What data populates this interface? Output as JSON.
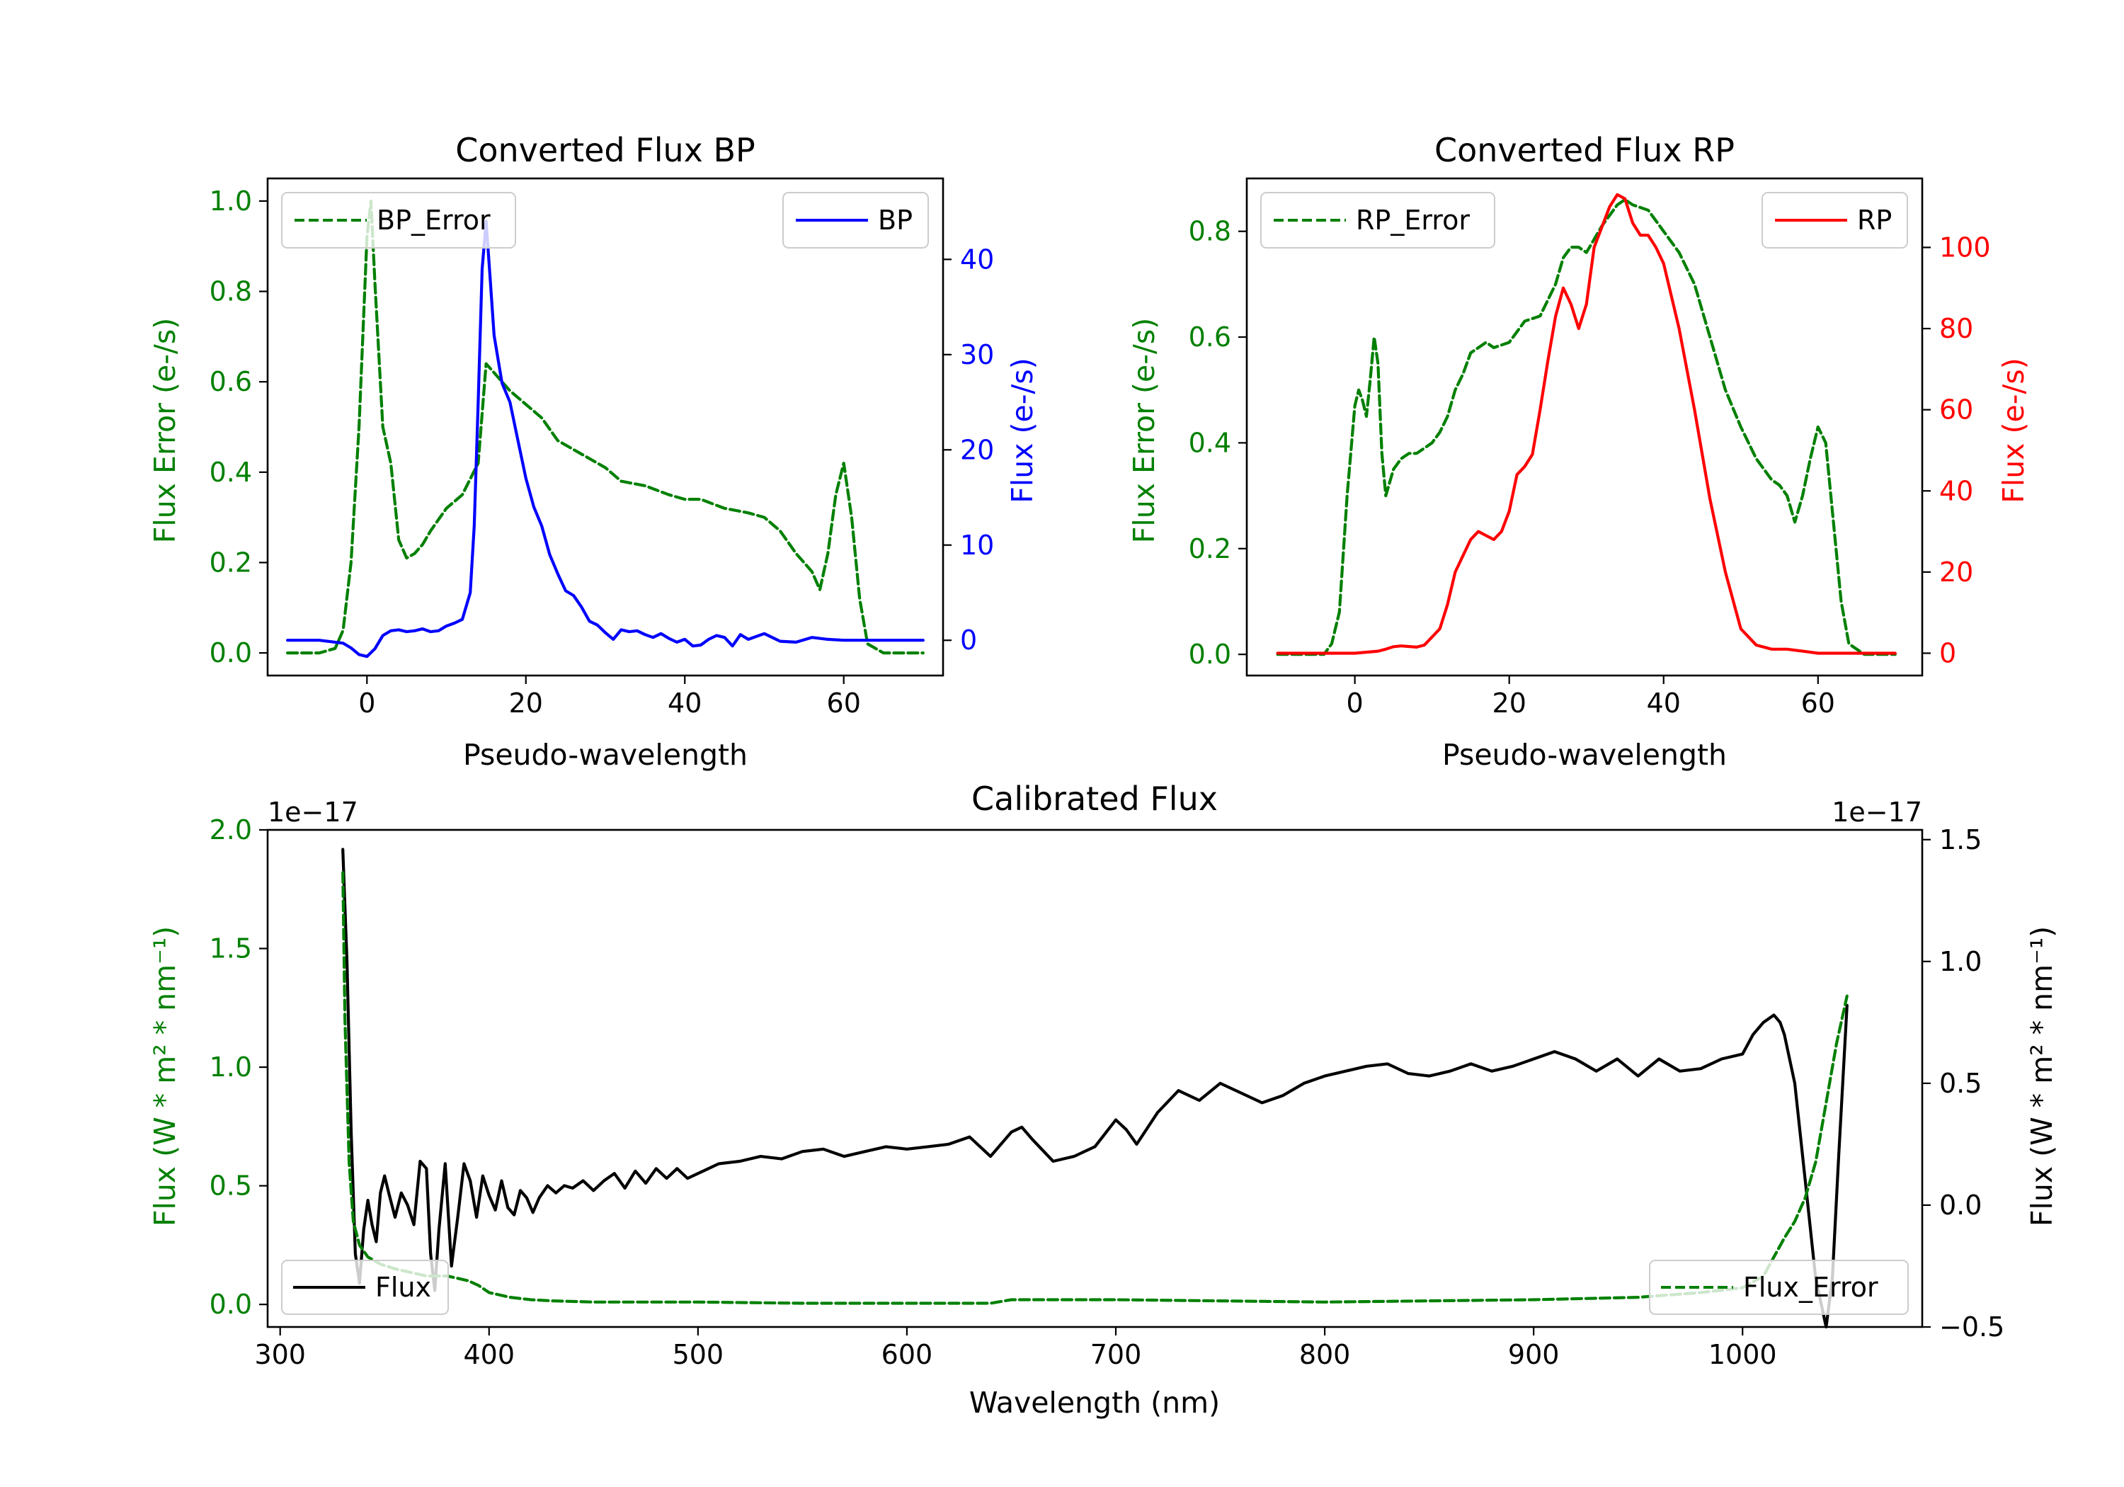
{
  "chart_data": [
    {
      "id": "bp",
      "type": "line",
      "title": "Converted Flux BP",
      "xlabel": "Pseudo-wavelength",
      "ylabel_left": "Flux Error (e-/s)",
      "ylabel_right": "Flux (e-/s)",
      "xlim": [
        -12.5,
        72.5
      ],
      "ylim_left": [
        -0.05,
        1.05
      ],
      "ylim_right": [
        -3.7,
        48.5
      ],
      "xticks": [
        0,
        20,
        40,
        60
      ],
      "yticks_left": [
        0.0,
        0.2,
        0.4,
        0.6,
        0.8,
        1.0
      ],
      "yticks_right": [
        0,
        10,
        20,
        30,
        40
      ],
      "series": [
        {
          "name": "BP_Error",
          "axis": "left",
          "color": "#008000",
          "style": "dashed",
          "legend": "top-left",
          "x": [
            -10,
            -6,
            -4,
            -3,
            -2,
            -1,
            0,
            0.5,
            1,
            2,
            3,
            4,
            5,
            6,
            7,
            8,
            10,
            12,
            14,
            15,
            16,
            18,
            20,
            22,
            24,
            26,
            28,
            30,
            32,
            35,
            38,
            40,
            42,
            45,
            48,
            50,
            52,
            54,
            56,
            57,
            58,
            59,
            60,
            61,
            62,
            63,
            65,
            68,
            70
          ],
          "y": [
            0,
            0,
            0.01,
            0.05,
            0.2,
            0.5,
            0.92,
            1.0,
            0.82,
            0.5,
            0.42,
            0.25,
            0.21,
            0.22,
            0.24,
            0.27,
            0.32,
            0.35,
            0.42,
            0.64,
            0.62,
            0.58,
            0.55,
            0.52,
            0.47,
            0.45,
            0.43,
            0.41,
            0.38,
            0.37,
            0.35,
            0.34,
            0.34,
            0.32,
            0.31,
            0.3,
            0.27,
            0.22,
            0.18,
            0.14,
            0.22,
            0.35,
            0.42,
            0.3,
            0.12,
            0.02,
            0,
            0,
            0
          ]
        },
        {
          "name": "BP",
          "axis": "right",
          "color": "#0000ff",
          "style": "solid",
          "legend": "top-right",
          "x": [
            -10,
            -6,
            -3,
            -2,
            -1,
            0,
            1,
            2,
            3,
            4,
            5,
            6,
            7,
            8,
            9,
            10,
            11,
            12,
            13,
            13.5,
            14,
            14.5,
            15,
            15.5,
            16,
            17,
            18,
            19,
            20,
            21,
            22,
            23,
            24,
            25,
            26,
            27,
            28,
            29,
            30,
            31,
            32,
            33,
            34,
            35,
            36,
            37,
            38,
            39,
            40,
            41,
            42,
            43,
            44,
            45,
            46,
            47,
            48,
            50,
            52,
            54,
            56,
            58,
            60,
            65,
            70
          ],
          "y": [
            0,
            0,
            -0.3,
            -0.8,
            -1.5,
            -1.7,
            -0.9,
            0.5,
            1,
            1.1,
            0.9,
            1,
            1.2,
            0.9,
            1,
            1.5,
            1.8,
            2.2,
            5,
            12,
            25,
            39,
            44,
            38,
            32,
            27,
            25,
            21,
            17,
            14,
            12,
            9,
            7,
            5.2,
            4.7,
            3.5,
            2,
            1.6,
            0.8,
            0.1,
            1.1,
            0.9,
            1,
            0.6,
            0.3,
            0.7,
            0.2,
            -0.2,
            0.1,
            -0.6,
            -0.5,
            0.1,
            0.5,
            0.3,
            -0.6,
            0.6,
            0.1,
            0.7,
            -0.1,
            -0.2,
            0.3,
            0.1,
            0,
            0,
            0
          ]
        }
      ]
    },
    {
      "id": "rp",
      "type": "line",
      "title": "Converted Flux RP",
      "xlabel": "Pseudo-wavelength",
      "ylabel_left": "Flux Error (e-/s)",
      "ylabel_right": "Flux (e-/s)",
      "xlim": [
        -14,
        73.5
      ],
      "ylim_left": [
        -0.04,
        0.9
      ],
      "ylim_right": [
        -5.5,
        117
      ],
      "xticks": [
        0,
        20,
        40,
        60
      ],
      "yticks_left": [
        0.0,
        0.2,
        0.4,
        0.6,
        0.8
      ],
      "yticks_right": [
        0,
        20,
        40,
        60,
        80,
        100
      ],
      "series": [
        {
          "name": "RP_Error",
          "axis": "left",
          "color": "#008000",
          "style": "dashed",
          "legend": "top-left",
          "x": [
            -10,
            -4,
            -3,
            -2,
            -1,
            0,
            0.5,
            1,
            1.5,
            2,
            2.5,
            3,
            3.5,
            4,
            5,
            6,
            7,
            8,
            9,
            10,
            11,
            12,
            13,
            14,
            15,
            16,
            17,
            18,
            20,
            22,
            24,
            26,
            27,
            28,
            29,
            30,
            32,
            34,
            35,
            36,
            38,
            40,
            42,
            44,
            46,
            48,
            50,
            52,
            54,
            55,
            56,
            57,
            58,
            59,
            60,
            61,
            62,
            63,
            64,
            66,
            70
          ],
          "y": [
            0,
            0,
            0.02,
            0.08,
            0.3,
            0.47,
            0.5,
            0.48,
            0.45,
            0.52,
            0.6,
            0.55,
            0.38,
            0.3,
            0.35,
            0.37,
            0.38,
            0.38,
            0.39,
            0.4,
            0.42,
            0.45,
            0.5,
            0.53,
            0.57,
            0.58,
            0.59,
            0.58,
            0.59,
            0.63,
            0.64,
            0.7,
            0.75,
            0.77,
            0.77,
            0.76,
            0.81,
            0.85,
            0.86,
            0.85,
            0.84,
            0.8,
            0.76,
            0.7,
            0.6,
            0.5,
            0.43,
            0.37,
            0.33,
            0.32,
            0.3,
            0.25,
            0.3,
            0.37,
            0.43,
            0.4,
            0.25,
            0.1,
            0.02,
            0,
            0
          ]
        },
        {
          "name": "RP",
          "axis": "right",
          "color": "#ff0000",
          "style": "solid",
          "legend": "top-right",
          "x": [
            -10,
            0,
            3,
            4,
            5,
            6,
            8,
            9,
            10,
            11,
            12,
            13,
            14,
            15,
            16,
            17,
            18,
            19,
            20,
            21,
            22,
            23,
            24,
            25,
            26,
            27,
            28,
            29,
            30,
            31,
            32,
            33,
            34,
            35,
            36,
            37,
            38,
            39,
            40,
            42,
            44,
            46,
            48,
            50,
            52,
            54,
            56,
            58,
            60,
            62,
            64,
            66,
            68,
            70
          ],
          "y": [
            0,
            0,
            0.5,
            1,
            1.6,
            1.8,
            1.5,
            2,
            4,
            6,
            12,
            20,
            24,
            28,
            30,
            29,
            28,
            30,
            35,
            44,
            46,
            49,
            60,
            72,
            83,
            90,
            86,
            80,
            86,
            100,
            105,
            110,
            113,
            112,
            106,
            103,
            103,
            100,
            96,
            80,
            60,
            38,
            20,
            6,
            2,
            1,
            1,
            0.5,
            0,
            0,
            0,
            0,
            0,
            0
          ]
        }
      ]
    },
    {
      "id": "cal",
      "type": "line",
      "title": "Calibrated Flux",
      "xlabel": "Wavelength (nm)",
      "ylabel_left": "Flux (W * m² * nm⁻¹)",
      "ylabel_right": "Flux (W * m² * nm⁻¹)",
      "offset_left": "1e−17",
      "offset_right": "1e−17",
      "xlim": [
        294,
        1086
      ],
      "ylim_left": [
        -0.095,
        2.0
      ],
      "ylim_right": [
        -0.5,
        1.54
      ],
      "xticks": [
        300,
        400,
        500,
        600,
        700,
        800,
        900,
        1000
      ],
      "yticks_left": [
        0.0,
        0.5,
        1.0,
        1.5,
        2.0
      ],
      "yticks_right": [
        -0.5,
        0.0,
        0.5,
        1.0,
        1.5
      ],
      "series": [
        {
          "name": "Flux",
          "axis": "right",
          "color": "#000000",
          "style": "solid",
          "legend": "bottom-left",
          "x": [
            330,
            332,
            334,
            336,
            338,
            340,
            342,
            344,
            346,
            348,
            350,
            352,
            355,
            358,
            361,
            364,
            367,
            370,
            372,
            374,
            376,
            379,
            382,
            385,
            388,
            391,
            394,
            397,
            400,
            403,
            406,
            409,
            412,
            415,
            418,
            421,
            424,
            428,
            432,
            436,
            440,
            445,
            450,
            455,
            460,
            465,
            470,
            475,
            480,
            485,
            490,
            495,
            500,
            510,
            520,
            530,
            540,
            550,
            560,
            570,
            580,
            590,
            600,
            610,
            620,
            630,
            640,
            650,
            655,
            660,
            670,
            680,
            690,
            700,
            705,
            710,
            720,
            730,
            740,
            750,
            760,
            770,
            780,
            790,
            800,
            810,
            820,
            830,
            840,
            850,
            860,
            870,
            880,
            890,
            900,
            910,
            920,
            930,
            940,
            950,
            960,
            970,
            980,
            990,
            1000,
            1005,
            1010,
            1015,
            1018,
            1020,
            1025,
            1030,
            1035,
            1040,
            1043,
            1046,
            1050
          ],
          "y": [
            1.46,
            1.0,
            0.3,
            -0.2,
            -0.32,
            -0.1,
            0.02,
            -0.08,
            -0.15,
            0.05,
            0.12,
            0.05,
            -0.05,
            0.05,
            0.0,
            -0.08,
            0.18,
            0.15,
            -0.2,
            -0.35,
            -0.1,
            0.17,
            -0.25,
            -0.05,
            0.17,
            0.1,
            -0.05,
            0.12,
            0.04,
            -0.02,
            0.1,
            -0.01,
            -0.04,
            0.06,
            0.03,
            -0.03,
            0.03,
            0.08,
            0.05,
            0.08,
            0.07,
            0.1,
            0.06,
            0.1,
            0.13,
            0.07,
            0.14,
            0.09,
            0.15,
            0.11,
            0.15,
            0.11,
            0.13,
            0.17,
            0.18,
            0.2,
            0.19,
            0.22,
            0.23,
            0.2,
            0.22,
            0.24,
            0.23,
            0.24,
            0.25,
            0.28,
            0.2,
            0.3,
            0.32,
            0.27,
            0.18,
            0.2,
            0.24,
            0.35,
            0.31,
            0.25,
            0.38,
            0.47,
            0.43,
            0.5,
            0.46,
            0.42,
            0.45,
            0.5,
            0.53,
            0.55,
            0.57,
            0.58,
            0.54,
            0.53,
            0.55,
            0.58,
            0.55,
            0.57,
            0.6,
            0.63,
            0.6,
            0.55,
            0.6,
            0.53,
            0.6,
            0.55,
            0.56,
            0.6,
            0.62,
            0.7,
            0.75,
            0.78,
            0.75,
            0.7,
            0.5,
            0.1,
            -0.3,
            -0.5,
            -0.3,
            0.2,
            0.82
          ]
        },
        {
          "name": "Flux_Error",
          "axis": "left",
          "color": "#008000",
          "style": "dashed",
          "legend": "bottom-right",
          "x": [
            330,
            331,
            333,
            335,
            338,
            342,
            348,
            355,
            360,
            365,
            370,
            375,
            380,
            385,
            390,
            395,
            400,
            410,
            420,
            430,
            450,
            500,
            550,
            600,
            625,
            640,
            650,
            700,
            800,
            900,
            950,
            980,
            1000,
            1010,
            1015,
            1020,
            1025,
            1030,
            1035,
            1040,
            1045,
            1050
          ],
          "y": [
            1.82,
            1.2,
            0.6,
            0.35,
            0.25,
            0.2,
            0.17,
            0.15,
            0.14,
            0.13,
            0.12,
            0.12,
            0.12,
            0.11,
            0.1,
            0.08,
            0.05,
            0.03,
            0.02,
            0.015,
            0.01,
            0.01,
            0.005,
            0.005,
            0.005,
            0.005,
            0.02,
            0.02,
            0.01,
            0.02,
            0.03,
            0.05,
            0.07,
            0.12,
            0.2,
            0.28,
            0.35,
            0.45,
            0.6,
            0.85,
            1.1,
            1.3
          ]
        }
      ]
    }
  ]
}
